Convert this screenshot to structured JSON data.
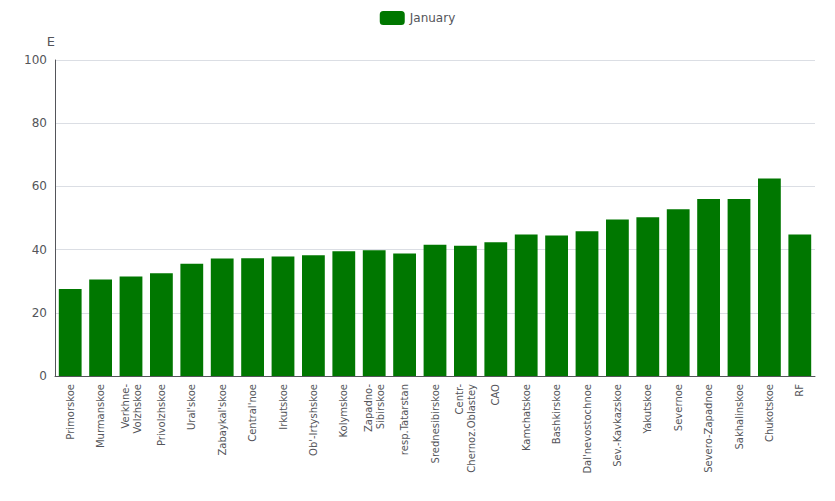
{
  "chart_data": {
    "type": "bar",
    "ylabel": "E",
    "categories": [
      "Primorskoe",
      "Murmanskoe",
      "Verkhne-\nVolzhskoe",
      "Privolzhskoe",
      "Ural'skoe",
      "Zabaykal'skoe",
      "Central'noe",
      "Irkutskoe",
      "Ob'-Irtyshskoe",
      "Kolymskoe",
      "Zapadno-\nSibirskoe",
      "resp.Tatarstan",
      "Srednesibirskoe",
      "Centr-\nChernoz.Oblastey",
      "CAO",
      "Kamchatskoe",
      "Bashkirskoe",
      "Dal'nevostochnoe",
      "Sev.-Kavkazskoe",
      "Yakutskoe",
      "Severnoe",
      "Severo-Zapadnoe",
      "Sakhalinskoe",
      "Chukotskoe",
      "RF"
    ],
    "series": [
      {
        "name": "January",
        "color": "#007700",
        "values": [
          27.5,
          30.5,
          31.5,
          32.5,
          35.5,
          37.2,
          37.3,
          37.8,
          38.2,
          39.5,
          39.8,
          38.8,
          41.5,
          41.2,
          42.3,
          44.8,
          44.5,
          45.8,
          49.5,
          50.2,
          52.8,
          56.0,
          56.0,
          62.5,
          44.8
        ]
      }
    ],
    "ylim": [
      0,
      100
    ],
    "yticks": [
      0,
      20,
      40,
      60,
      80,
      100
    ],
    "grid": true,
    "legend": "top"
  }
}
